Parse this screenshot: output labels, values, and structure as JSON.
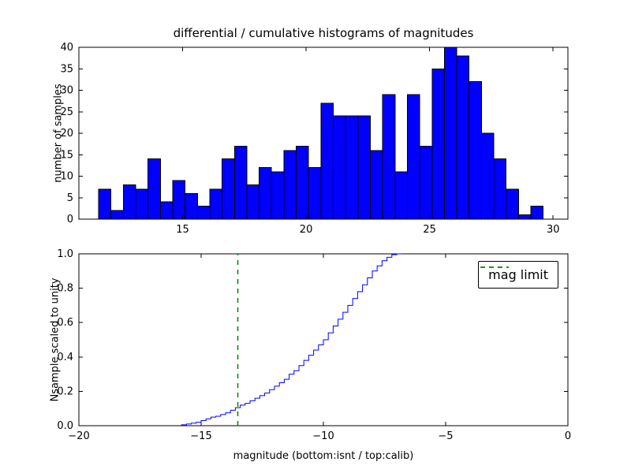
{
  "figure": {
    "background": "#ffffff"
  },
  "legend": {
    "label": "mag limit"
  },
  "chart_data": [
    {
      "type": "bar",
      "title": "differential / cumulative histograms of magnitudes",
      "xlabel": "",
      "ylabel": "number of samples",
      "bin_start": 11.6,
      "bin_width": 0.5,
      "values": [
        7,
        2,
        8,
        7,
        14,
        4,
        9,
        6,
        3,
        7,
        14,
        17,
        8,
        12,
        11,
        16,
        17,
        12,
        27,
        24,
        24,
        24,
        16,
        29,
        11,
        29,
        17,
        35,
        40,
        38,
        32,
        20,
        14,
        7,
        1,
        3
      ],
      "xlim": [
        10.8,
        30.6
      ],
      "ylim": [
        0,
        40
      ],
      "xticks": [
        15,
        20,
        25,
        30
      ],
      "xtick_labels": [
        "15",
        "20",
        "25",
        "30"
      ],
      "yticks": [
        0,
        5,
        10,
        15,
        20,
        25,
        30,
        35,
        40
      ],
      "ytick_labels": [
        "0",
        "5",
        "10",
        "15",
        "20",
        "25",
        "30",
        "35",
        "40"
      ],
      "bar_color": "#0000ff",
      "bar_edge_color": "#000000",
      "grid": false
    },
    {
      "type": "line",
      "subtype": "cumulative-step-histogram",
      "title": "",
      "xlabel": "magnitude (bottom:isnt / top:calib)",
      "ylabel": "Nsample scaled to unity",
      "step_start": -15.8,
      "step_width": 0.2,
      "cumulative_fraction": [
        0.005,
        0.01,
        0.015,
        0.02,
        0.03,
        0.04,
        0.05,
        0.055,
        0.065,
        0.075,
        0.09,
        0.105,
        0.12,
        0.13,
        0.145,
        0.16,
        0.175,
        0.19,
        0.21,
        0.23,
        0.25,
        0.27,
        0.3,
        0.32,
        0.35,
        0.38,
        0.41,
        0.44,
        0.47,
        0.5,
        0.54,
        0.58,
        0.62,
        0.66,
        0.7,
        0.74,
        0.78,
        0.82,
        0.86,
        0.9,
        0.93,
        0.96,
        0.98,
        0.995,
        1.0
      ],
      "xlim": [
        -20,
        0
      ],
      "ylim": [
        0,
        1
      ],
      "xticks": [
        -20,
        -15,
        -10,
        -5,
        0
      ],
      "xtick_labels": [
        "−20",
        "−15",
        "−10",
        "−5",
        "0"
      ],
      "yticks": [
        0,
        0.2,
        0.4,
        0.6,
        0.8,
        1.0
      ],
      "ytick_labels": [
        "0.0",
        "0.2",
        "0.4",
        "0.6",
        "0.8",
        "1.0"
      ],
      "line_color": "#0000ff",
      "vline": {
        "x": -13.5,
        "color": "#008000",
        "style": "dashed",
        "label": "mag limit"
      },
      "legend_position": "upper right",
      "grid": false
    }
  ]
}
